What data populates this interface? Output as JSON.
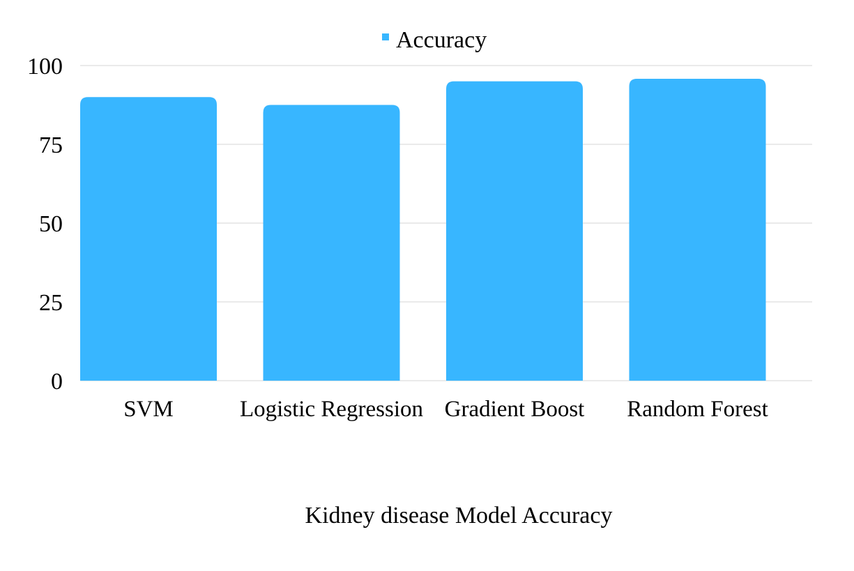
{
  "chart_data": {
    "type": "bar",
    "categories": [
      "SVM",
      "Logistic Regression",
      "Gradient Boost",
      "Random Forest"
    ],
    "series": [
      {
        "name": "Accuracy",
        "values": [
          90,
          87.5,
          95,
          95.8
        ],
        "color": "#38b6ff"
      }
    ],
    "xlabel": "Kidney disease Model Accuracy",
    "ylabel": "",
    "ylim": [
      0,
      100
    ],
    "yticks": [
      0,
      25,
      50,
      75,
      100
    ],
    "grid": true,
    "legend_position": "top-center"
  }
}
